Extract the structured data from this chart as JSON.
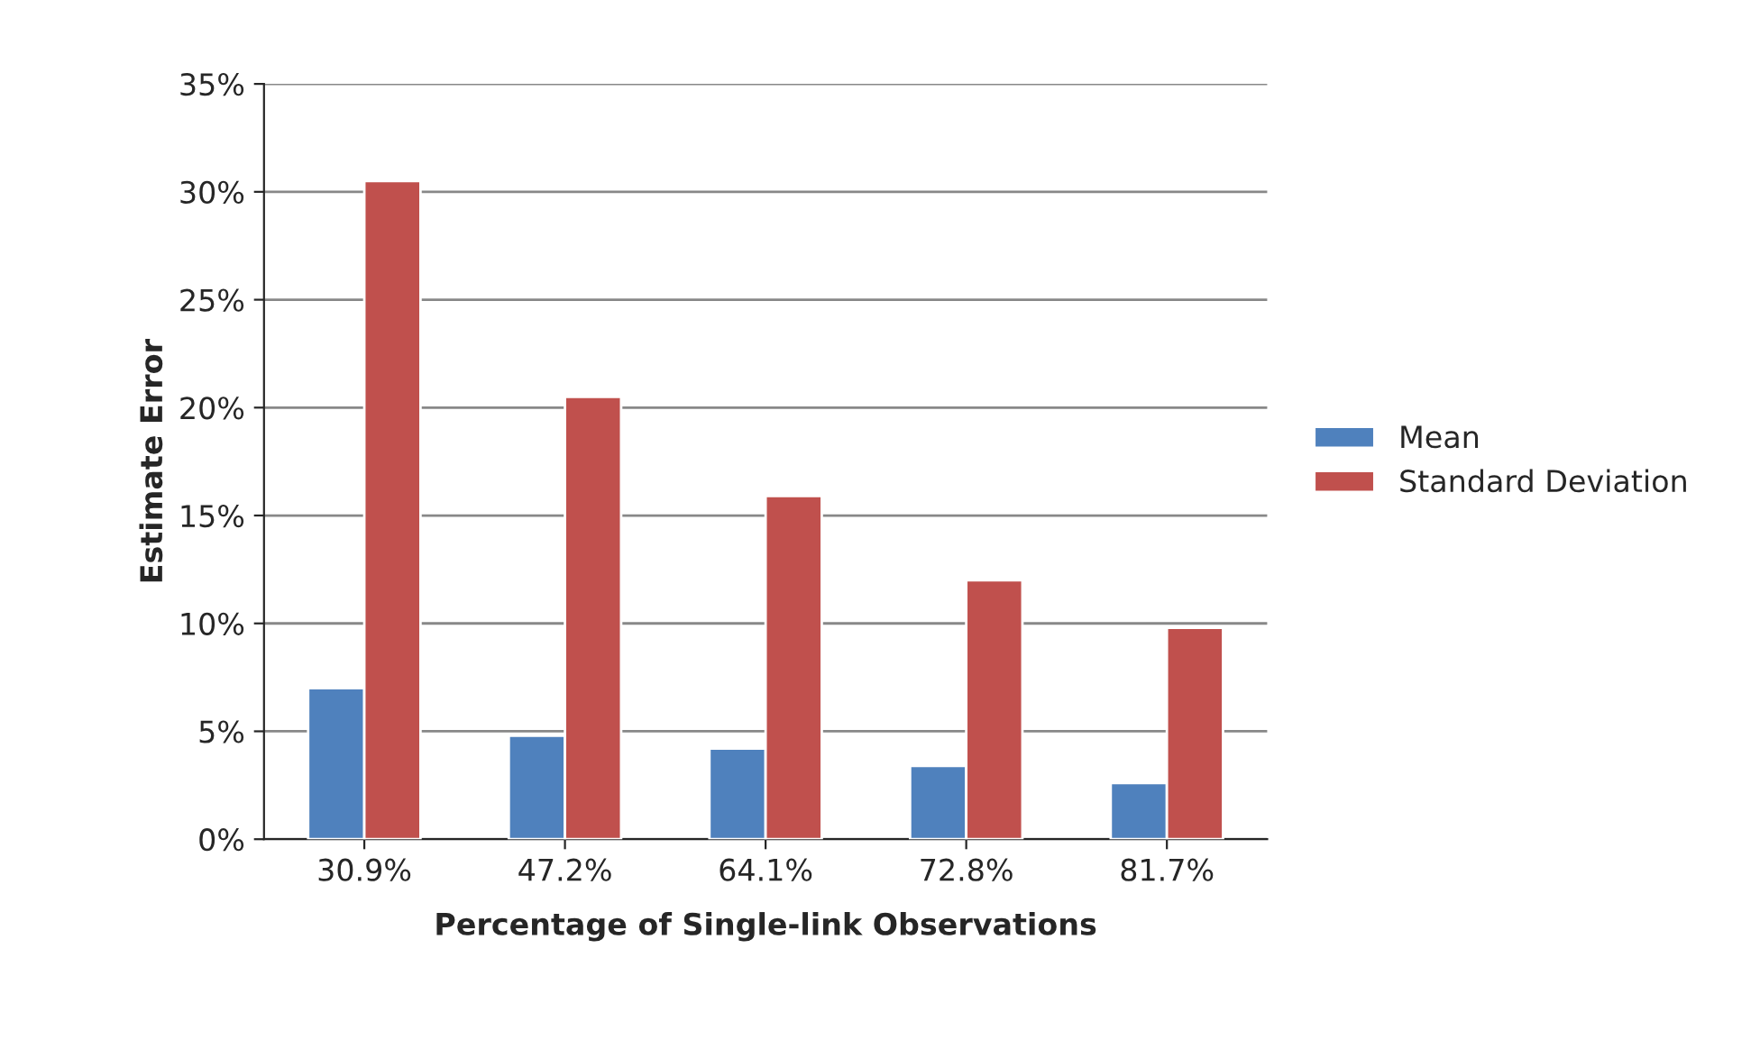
{
  "chart_data": {
    "type": "bar",
    "xlabel": "Percentage of Single-link Observations",
    "ylabel": "Estimate Error",
    "categories": [
      "30.9%",
      "47.2%",
      "64.1%",
      "72.8%",
      "81.7%"
    ],
    "series": [
      {
        "name": "Mean",
        "color": "#4f81bd",
        "values": [
          7.0,
          4.8,
          4.2,
          3.4,
          2.6
        ]
      },
      {
        "name": "Standard Deviation",
        "color": "#c0504d",
        "values": [
          30.5,
          20.5,
          15.9,
          12.0,
          9.8
        ]
      }
    ],
    "ylim": [
      0,
      35
    ],
    "yticks": [
      {
        "value": 0,
        "label": "0%"
      },
      {
        "value": 5,
        "label": "5%"
      },
      {
        "value": 10,
        "label": "10%"
      },
      {
        "value": 15,
        "label": "15%"
      },
      {
        "value": 20,
        "label": "20%"
      },
      {
        "value": 25,
        "label": "25%"
      },
      {
        "value": 30,
        "label": "30%"
      },
      {
        "value": 35,
        "label": "35%"
      }
    ],
    "grid": "y",
    "legend": "right"
  }
}
